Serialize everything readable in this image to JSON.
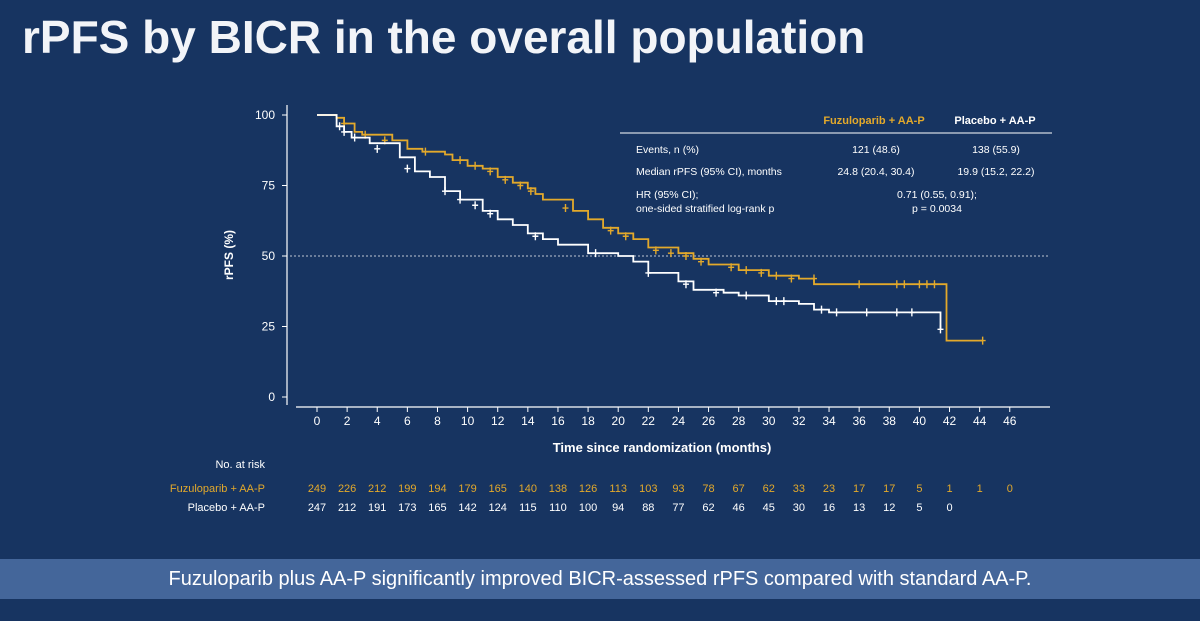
{
  "slide": {
    "title": "rPFS by BICR in the overall population",
    "banner": "Fuzuloparib plus AA-P significantly improved BICR-assessed rPFS compared with standard AA-P."
  },
  "colors": {
    "background": "#173461",
    "fuzuloparib": "#e3a92b",
    "placebo": "#ffffff",
    "banner": "#44669a"
  },
  "stats_table": {
    "headers": [
      "Fuzuloparib + AA-P",
      "Placebo + AA-P"
    ],
    "rows": [
      {
        "label": "Events, n (%)",
        "fuz": "121 (48.6)",
        "pla": "138 (55.9)"
      },
      {
        "label": "Median rPFS (95% CI), months",
        "fuz": "24.8 (20.4, 30.4)",
        "pla": "19.9 (15.2, 22.2)"
      }
    ],
    "hr_label_1": "HR (95% CI);",
    "hr_label_2": "one-sided stratified log-rank p",
    "hr_value_1": "0.71 (0.55, 0.91);",
    "hr_value_2": "p = 0.0034"
  },
  "risk_table": {
    "title": "No. at risk",
    "rows": [
      {
        "label": "Fuzuloparib + AA-P",
        "values": [
          249,
          226,
          212,
          199,
          194,
          179,
          165,
          140,
          138,
          126,
          113,
          103,
          93,
          78,
          67,
          62,
          33,
          23,
          17,
          17,
          5,
          1,
          1,
          0
        ]
      },
      {
        "label": "Placebo + AA-P",
        "values": [
          247,
          212,
          191,
          173,
          165,
          142,
          124,
          115,
          110,
          100,
          94,
          88,
          77,
          62,
          46,
          45,
          30,
          16,
          13,
          12,
          5,
          0
        ]
      }
    ]
  },
  "chart_data": {
    "type": "line",
    "xlabel": "Time since randomization (months)",
    "ylabel": "rPFS (%)",
    "xlim": [
      0,
      46
    ],
    "ylim": [
      0,
      100
    ],
    "xticks": [
      0,
      2,
      4,
      6,
      8,
      10,
      12,
      14,
      16,
      18,
      20,
      22,
      24,
      26,
      28,
      30,
      32,
      34,
      36,
      38,
      40,
      42,
      44,
      46
    ],
    "yticks": [
      0,
      25,
      50,
      75,
      100
    ],
    "reference_line_y": 50,
    "series": [
      {
        "name": "Fuzuloparib + AA-P",
        "points": [
          [
            0,
            100
          ],
          [
            1.3,
            99
          ],
          [
            1.8,
            97
          ],
          [
            2.5,
            94
          ],
          [
            3,
            93
          ],
          [
            5,
            91
          ],
          [
            6,
            88
          ],
          [
            7,
            87
          ],
          [
            8.5,
            86
          ],
          [
            9,
            84
          ],
          [
            10,
            82
          ],
          [
            11,
            81
          ],
          [
            12,
            78
          ],
          [
            13,
            76
          ],
          [
            14,
            74
          ],
          [
            14.5,
            72
          ],
          [
            15,
            70
          ],
          [
            17,
            66
          ],
          [
            18,
            63
          ],
          [
            19,
            60
          ],
          [
            20,
            58
          ],
          [
            21,
            56
          ],
          [
            22,
            53
          ],
          [
            24,
            51
          ],
          [
            25,
            49
          ],
          [
            26,
            47
          ],
          [
            28,
            45
          ],
          [
            30,
            43
          ],
          [
            32,
            42
          ],
          [
            33,
            40
          ],
          [
            41.8,
            40
          ],
          [
            41.8,
            20
          ],
          [
            44.2,
            20
          ]
        ],
        "censor": [
          [
            1.8,
            97
          ],
          [
            3.2,
            93
          ],
          [
            4.5,
            91
          ],
          [
            7.2,
            87
          ],
          [
            9.5,
            84
          ],
          [
            10.5,
            82
          ],
          [
            11.5,
            80
          ],
          [
            12.5,
            77
          ],
          [
            13.5,
            75
          ],
          [
            14.2,
            73
          ],
          [
            16.5,
            67
          ],
          [
            19.5,
            59
          ],
          [
            20.5,
            57
          ],
          [
            22.5,
            52
          ],
          [
            23.5,
            51
          ],
          [
            24.5,
            50
          ],
          [
            25.5,
            48
          ],
          [
            27.5,
            46
          ],
          [
            28.5,
            45
          ],
          [
            29.5,
            44
          ],
          [
            30.5,
            43
          ],
          [
            31.5,
            42
          ],
          [
            33,
            42
          ],
          [
            36,
            40
          ],
          [
            38.5,
            40
          ],
          [
            39,
            40
          ],
          [
            40,
            40
          ],
          [
            40.5,
            40
          ],
          [
            41,
            40
          ],
          [
            44.2,
            20
          ]
        ]
      },
      {
        "name": "Placebo + AA-P",
        "points": [
          [
            0,
            100
          ],
          [
            1.3,
            96
          ],
          [
            1.8,
            94
          ],
          [
            2.3,
            92
          ],
          [
            3.5,
            90
          ],
          [
            5.5,
            85
          ],
          [
            6.5,
            80
          ],
          [
            7.5,
            78
          ],
          [
            8.5,
            73
          ],
          [
            9.5,
            70
          ],
          [
            11,
            66
          ],
          [
            12,
            63
          ],
          [
            13,
            61
          ],
          [
            14,
            58
          ],
          [
            15,
            56
          ],
          [
            16,
            54
          ],
          [
            18,
            51
          ],
          [
            20,
            50
          ],
          [
            21,
            48
          ],
          [
            22,
            44
          ],
          [
            24,
            41
          ],
          [
            25,
            38
          ],
          [
            27,
            37
          ],
          [
            28,
            36
          ],
          [
            30,
            34
          ],
          [
            32,
            33
          ],
          [
            33,
            31
          ],
          [
            34,
            30
          ],
          [
            41,
            30
          ],
          [
            41.4,
            24
          ]
        ],
        "censor": [
          [
            1.5,
            96
          ],
          [
            1.8,
            94
          ],
          [
            2.5,
            92
          ],
          [
            4,
            88
          ],
          [
            6,
            81
          ],
          [
            8.5,
            73
          ],
          [
            9.5,
            70
          ],
          [
            10.5,
            68
          ],
          [
            11.5,
            65
          ],
          [
            14.5,
            57
          ],
          [
            18.5,
            51
          ],
          [
            22,
            44
          ],
          [
            24.5,
            40
          ],
          [
            26.5,
            37
          ],
          [
            28.5,
            36
          ],
          [
            30.5,
            34
          ],
          [
            31,
            34
          ],
          [
            33.5,
            31
          ],
          [
            34.5,
            30
          ],
          [
            36.5,
            30
          ],
          [
            38.5,
            30
          ],
          [
            39.5,
            30
          ],
          [
            41.4,
            24
          ]
        ]
      }
    ]
  }
}
